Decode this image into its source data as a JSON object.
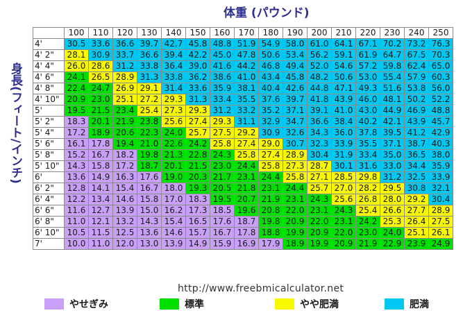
{
  "title": "体重 (パウンド)",
  "ylabel": "身長(フィート/インチ)",
  "url": "http://www.freebmicalculator.net",
  "colors": {
    "underweight": "#c8a0f8",
    "normal": "#00e000",
    "overweight": "#f8f800",
    "obese": "#00c8f0"
  },
  "legend": [
    {
      "label": "やせぎみ",
      "color": "#c8a0f8"
    },
    {
      "label": "標準",
      "color": "#00e000"
    },
    {
      "label": "やや肥満",
      "color": "#f8f800"
    },
    {
      "label": "肥満",
      "color": "#00c8f0"
    }
  ],
  "chart_data": {
    "type": "table",
    "title": "体重 (パウンド)",
    "xlabel": "体重 (パウンド)",
    "ylabel": "身長(フィート/インチ)",
    "weights": [
      100,
      110,
      120,
      130,
      140,
      150,
      160,
      170,
      180,
      190,
      200,
      210,
      220,
      230,
      240,
      250
    ],
    "heights": [
      "4'",
      "4' 2\"",
      "4' 4\"",
      "4' 6\"",
      "4' 8\"",
      "4' 10\"",
      "5'",
      "5' 2\"",
      "5' 4\"",
      "5' 6\"",
      "5' 8\"",
      "5' 10\"",
      "6'",
      "6' 2\"",
      "6' 4\"",
      "6' 6\"",
      "6' 8\"",
      "6' 10\"",
      "7'"
    ],
    "bmi": [
      [
        30.5,
        33.6,
        36.6,
        39.7,
        42.7,
        45.8,
        48.8,
        51.9,
        54.9,
        58.0,
        61.0,
        64.1,
        67.1,
        70.2,
        73.2,
        76.3
      ],
      [
        28.1,
        30.9,
        33.7,
        36.6,
        39.4,
        42.2,
        45.0,
        47.8,
        50.6,
        53.4,
        56.2,
        59.1,
        61.9,
        64.7,
        67.5,
        70.3
      ],
      [
        26.0,
        28.6,
        31.2,
        33.8,
        36.4,
        39.0,
        41.6,
        44.2,
        46.8,
        49.4,
        52.0,
        54.6,
        57.2,
        59.8,
        62.4,
        65.0
      ],
      [
        24.1,
        26.5,
        28.9,
        31.3,
        33.8,
        36.2,
        38.6,
        41.0,
        43.4,
        45.8,
        48.2,
        50.6,
        53.0,
        55.4,
        57.9,
        60.3
      ],
      [
        22.4,
        24.7,
        26.9,
        29.1,
        31.4,
        33.6,
        35.9,
        38.1,
        40.4,
        42.6,
        44.8,
        47.1,
        49.3,
        51.6,
        53.8,
        56.0
      ],
      [
        20.9,
        23.0,
        25.1,
        27.2,
        29.3,
        31.3,
        33.4,
        35.5,
        37.6,
        39.7,
        41.8,
        43.9,
        46.0,
        48.1,
        50.2,
        52.2
      ],
      [
        19.5,
        21.5,
        23.4,
        25.4,
        27.3,
        29.3,
        31.2,
        33.2,
        35.2,
        37.1,
        39.1,
        41.0,
        43.0,
        44.9,
        46.9,
        48.8
      ],
      [
        18.3,
        20.1,
        21.9,
        23.8,
        25.6,
        27.4,
        29.3,
        31.1,
        32.9,
        34.7,
        36.6,
        38.4,
        40.2,
        42.1,
        43.9,
        45.7
      ],
      [
        17.2,
        18.9,
        20.6,
        22.3,
        24.0,
        25.7,
        27.5,
        29.2,
        30.9,
        32.6,
        34.3,
        36.0,
        37.8,
        39.5,
        41.2,
        42.9
      ],
      [
        16.1,
        17.8,
        19.4,
        21.0,
        22.6,
        24.2,
        25.8,
        27.4,
        29.0,
        30.7,
        32.3,
        33.9,
        35.5,
        37.1,
        38.7,
        40.3
      ],
      [
        15.2,
        16.7,
        18.2,
        19.8,
        21.3,
        22.8,
        24.3,
        25.8,
        27.4,
        28.9,
        30.4,
        31.9,
        33.4,
        35.0,
        36.5,
        38.0
      ],
      [
        14.3,
        15.8,
        17.2,
        18.7,
        20.1,
        21.5,
        23.0,
        24.4,
        25.8,
        27.3,
        28.7,
        30.1,
        31.6,
        33.0,
        34.4,
        35.9
      ],
      [
        13.6,
        14.9,
        16.3,
        17.6,
        19.0,
        20.3,
        21.7,
        23.1,
        24.4,
        25.8,
        27.1,
        28.5,
        29.8,
        31.2,
        32.5,
        33.9
      ],
      [
        12.8,
        14.1,
        15.4,
        16.7,
        18.0,
        19.3,
        20.5,
        21.8,
        23.1,
        24.4,
        25.7,
        27.0,
        28.2,
        29.5,
        30.8,
        32.1
      ],
      [
        12.2,
        13.4,
        14.6,
        15.8,
        17.0,
        18.3,
        19.5,
        20.7,
        21.9,
        23.1,
        24.3,
        25.6,
        26.8,
        28.0,
        29.2,
        30.4
      ],
      [
        11.6,
        12.7,
        13.9,
        15.0,
        16.2,
        17.3,
        18.5,
        19.6,
        20.8,
        22.0,
        23.1,
        24.3,
        25.4,
        26.6,
        27.7,
        28.9
      ],
      [
        11.0,
        12.1,
        13.2,
        14.3,
        15.4,
        16.5,
        17.6,
        18.7,
        19.8,
        20.9,
        22.0,
        23.1,
        24.2,
        25.3,
        26.4,
        27.5
      ],
      [
        10.5,
        11.5,
        12.5,
        13.6,
        14.6,
        15.7,
        16.7,
        17.8,
        18.8,
        19.9,
        20.9,
        22.0,
        23.0,
        24.0,
        25.1,
        26.1
      ],
      [
        10.0,
        11.0,
        12.0,
        13.0,
        13.9,
        14.9,
        15.9,
        16.9,
        17.9,
        18.9,
        19.9,
        20.9,
        21.9,
        22.9,
        23.9,
        24.9
      ]
    ],
    "categories": [
      [
        "obese",
        "obese",
        "obese",
        "obese",
        "obese",
        "obese",
        "obese",
        "obese",
        "obese",
        "obese",
        "obese",
        "obese",
        "obese",
        "obese",
        "obese",
        "obese"
      ],
      [
        "overweight",
        "obese",
        "obese",
        "obese",
        "obese",
        "obese",
        "obese",
        "obese",
        "obese",
        "obese",
        "obese",
        "obese",
        "obese",
        "obese",
        "obese",
        "obese"
      ],
      [
        "overweight",
        "overweight",
        "obese",
        "obese",
        "obese",
        "obese",
        "obese",
        "obese",
        "obese",
        "obese",
        "obese",
        "obese",
        "obese",
        "obese",
        "obese",
        "obese"
      ],
      [
        "normal",
        "overweight",
        "overweight",
        "obese",
        "obese",
        "obese",
        "obese",
        "obese",
        "obese",
        "obese",
        "obese",
        "obese",
        "obese",
        "obese",
        "obese",
        "obese"
      ],
      [
        "normal",
        "normal",
        "overweight",
        "overweight",
        "obese",
        "obese",
        "obese",
        "obese",
        "obese",
        "obese",
        "obese",
        "obese",
        "obese",
        "obese",
        "obese",
        "obese"
      ],
      [
        "normal",
        "normal",
        "overweight",
        "overweight",
        "overweight",
        "obese",
        "obese",
        "obese",
        "obese",
        "obese",
        "obese",
        "obese",
        "obese",
        "obese",
        "obese",
        "obese"
      ],
      [
        "normal",
        "normal",
        "normal",
        "overweight",
        "overweight",
        "overweight",
        "obese",
        "obese",
        "obese",
        "obese",
        "obese",
        "obese",
        "obese",
        "obese",
        "obese",
        "obese"
      ],
      [
        "underweight",
        "normal",
        "normal",
        "normal",
        "overweight",
        "overweight",
        "overweight",
        "obese",
        "obese",
        "obese",
        "obese",
        "obese",
        "obese",
        "obese",
        "obese",
        "obese"
      ],
      [
        "underweight",
        "normal",
        "normal",
        "normal",
        "normal",
        "overweight",
        "overweight",
        "overweight",
        "obese",
        "obese",
        "obese",
        "obese",
        "obese",
        "obese",
        "obese",
        "obese"
      ],
      [
        "underweight",
        "underweight",
        "normal",
        "normal",
        "normal",
        "normal",
        "overweight",
        "overweight",
        "overweight",
        "obese",
        "obese",
        "obese",
        "obese",
        "obese",
        "obese",
        "obese"
      ],
      [
        "underweight",
        "underweight",
        "underweight",
        "normal",
        "normal",
        "normal",
        "normal",
        "overweight",
        "overweight",
        "overweight",
        "obese",
        "obese",
        "obese",
        "obese",
        "obese",
        "obese"
      ],
      [
        "underweight",
        "underweight",
        "underweight",
        "normal",
        "normal",
        "normal",
        "normal",
        "normal",
        "overweight",
        "overweight",
        "overweight",
        "obese",
        "obese",
        "obese",
        "obese",
        "obese"
      ],
      [
        "underweight",
        "underweight",
        "underweight",
        "underweight",
        "normal",
        "normal",
        "normal",
        "normal",
        "normal",
        "overweight",
        "overweight",
        "overweight",
        "overweight",
        "obese",
        "obese",
        "obese"
      ],
      [
        "underweight",
        "underweight",
        "underweight",
        "underweight",
        "underweight",
        "normal",
        "normal",
        "normal",
        "normal",
        "normal",
        "overweight",
        "overweight",
        "overweight",
        "overweight",
        "obese",
        "obese"
      ],
      [
        "underweight",
        "underweight",
        "underweight",
        "underweight",
        "underweight",
        "underweight",
        "normal",
        "normal",
        "normal",
        "normal",
        "normal",
        "overweight",
        "overweight",
        "overweight",
        "overweight",
        "obese"
      ],
      [
        "underweight",
        "underweight",
        "underweight",
        "underweight",
        "underweight",
        "underweight",
        "underweight",
        "normal",
        "normal",
        "normal",
        "normal",
        "normal",
        "overweight",
        "overweight",
        "overweight",
        "overweight"
      ],
      [
        "underweight",
        "underweight",
        "underweight",
        "underweight",
        "underweight",
        "underweight",
        "underweight",
        "underweight",
        "normal",
        "normal",
        "normal",
        "normal",
        "normal",
        "overweight",
        "overweight",
        "overweight"
      ],
      [
        "underweight",
        "underweight",
        "underweight",
        "underweight",
        "underweight",
        "underweight",
        "underweight",
        "underweight",
        "normal",
        "normal",
        "normal",
        "normal",
        "normal",
        "normal",
        "overweight",
        "overweight"
      ],
      [
        "underweight",
        "underweight",
        "underweight",
        "underweight",
        "underweight",
        "underweight",
        "underweight",
        "underweight",
        "underweight",
        "normal",
        "normal",
        "normal",
        "normal",
        "normal",
        "normal",
        "normal"
      ]
    ]
  }
}
